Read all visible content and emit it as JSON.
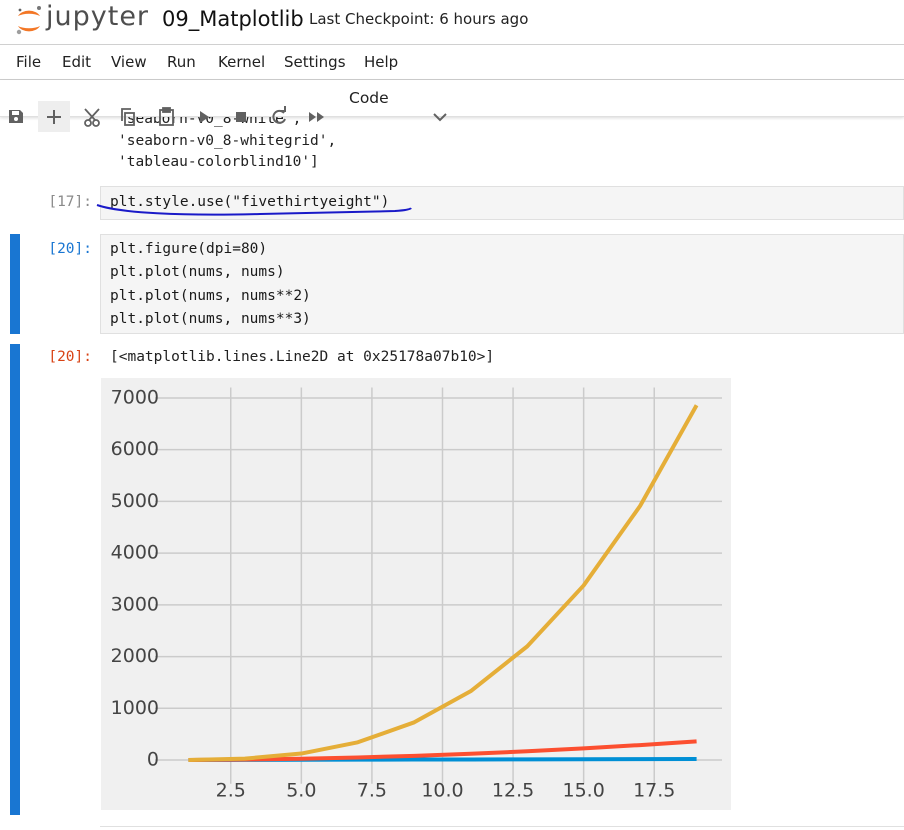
{
  "header": {
    "logo_text": "jupyter",
    "notebook_name": "09_Matplotlib",
    "checkpoint": "Last Checkpoint: 6 hours ago"
  },
  "menu": [
    "File",
    "Edit",
    "View",
    "Run",
    "Kernel",
    "Settings",
    "Help"
  ],
  "toolbar": {
    "cell_type": "Code"
  },
  "previous_output": [
    "'seaborn-v0_8-white',",
    "'seaborn-v0_8-whitegrid',",
    "'tableau-colorblind10']"
  ],
  "cells": [
    {
      "prompt": "[17]:",
      "code": [
        "plt.style.use(\"fivethirtyeight\")"
      ]
    },
    {
      "prompt": "[20]:",
      "code": [
        "plt.figure(dpi=80)",
        "plt.plot(nums, nums)",
        "plt.plot(nums, nums**2)",
        "plt.plot(nums, nums**3)"
      ]
    }
  ],
  "output": {
    "prompt": "[20]:",
    "text": "[<matplotlib.lines.Line2D at 0x25178a07b10>]"
  },
  "chart_data": {
    "type": "line",
    "x": [
      1,
      3,
      5,
      7,
      9,
      11,
      13,
      15,
      17,
      19
    ],
    "series": [
      {
        "color": "#008fd5",
        "values": [
          1,
          3,
          5,
          7,
          9,
          11,
          13,
          15,
          17,
          19
        ]
      },
      {
        "color": "#fc4f30",
        "values": [
          1,
          9,
          25,
          49,
          81,
          121,
          169,
          225,
          289,
          361
        ]
      },
      {
        "color": "#e5ae38",
        "values": [
          1,
          27,
          125,
          343,
          729,
          1331,
          2197,
          3375,
          4913,
          6859
        ]
      }
    ],
    "xlim": [
      0.1,
      19.9
    ],
    "ylim": [
      -341.9,
      7201.9
    ],
    "xticks": [
      2.5,
      {
        "value": 5,
        "label": "5.0"
      },
      7.5,
      {
        "value": 10,
        "label": "10.0"
      },
      12.5,
      {
        "value": 15,
        "label": "15.0"
      },
      17.5
    ],
    "yticks": [
      0,
      1000,
      2000,
      3000,
      4000,
      5000,
      6000,
      7000
    ],
    "grid": true,
    "background": "#f0f0f0"
  }
}
